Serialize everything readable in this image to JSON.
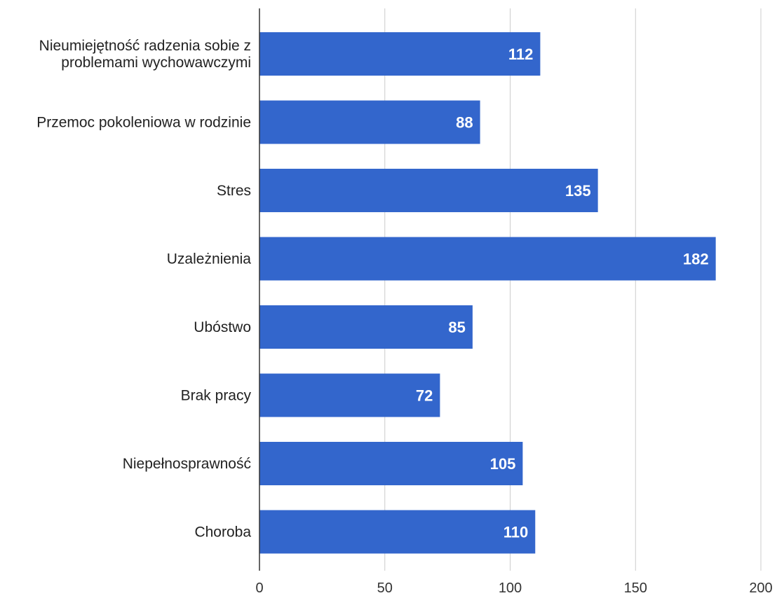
{
  "chart_data": {
    "type": "bar",
    "orientation": "horizontal",
    "categories": [
      "Nieumiejętność radzenia sobie z problemami wychowawczymi",
      "Przemoc pokoleniowa w rodzinie",
      "Stres",
      "Uzależnienia",
      "Ubóstwo",
      "Brak pracy",
      "Niepełnosprawność",
      "Choroba"
    ],
    "category_lines": [
      [
        "Nieumiejętność radzenia sobie z",
        "problemami wychowawczymi"
      ],
      [
        "Przemoc pokoleniowa w rodzinie"
      ],
      [
        "Stres"
      ],
      [
        "Uzależnienia"
      ],
      [
        "Ubóstwo"
      ],
      [
        "Brak pracy"
      ],
      [
        "Niepełnosprawność"
      ],
      [
        "Choroba"
      ]
    ],
    "values": [
      112,
      88,
      135,
      182,
      85,
      72,
      105,
      110
    ],
    "data_labels": [
      "112",
      "88",
      "135",
      "182",
      "85",
      "72",
      "105",
      "110"
    ],
    "xlim": [
      0,
      200
    ],
    "ticks": [
      0,
      50,
      100,
      150,
      200
    ],
    "tick_labels": [
      "0",
      "50",
      "100",
      "150",
      "200"
    ],
    "title": "",
    "xlabel": "",
    "ylabel": "",
    "grid": true,
    "legend": false,
    "bar_color": "#3366cc",
    "grid_color": "#cccccc",
    "axis_color": "#333333",
    "label_color": "#ffffff"
  }
}
